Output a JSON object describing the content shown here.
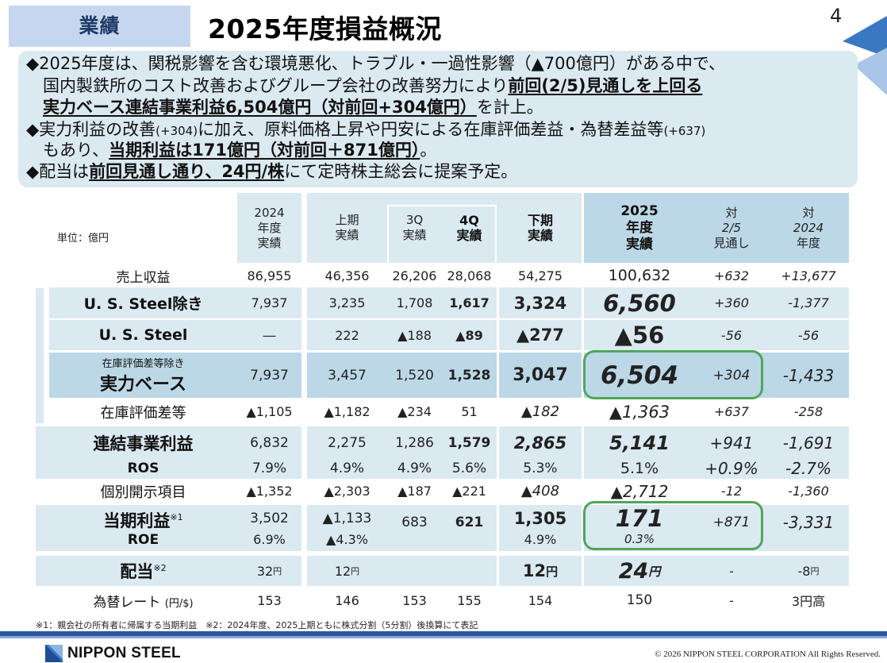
{
  "section_tag": "業績",
  "title": "2025年度損益概況",
  "page_number": "4",
  "summary": {
    "line1": "◆2025年度は、関税影響を含む環境悪化、トラブル・一過性影響（▲700億円）がある中で、",
    "line2_plain": "国内製鉄所のコスト改善およびグループ会社の改善努力により",
    "line2_bold": "前回(2/5)見通しを上回る",
    "line3_bold": "実力ベース連結事業利益6,504億円（対前回+304億円）",
    "line3_plain": "を計上。",
    "line4_a": "◆実力利益の改善",
    "line4_small1": "(+304)",
    "line4_b": "に加え、原料価格上昇や円安による在庫評価差益・為替差益等",
    "line4_small2": "(+637)",
    "line5_plain": "もあり、",
    "line5_bold": "当期利益は171億円（対前回＋871億円）",
    "line5_end": "。",
    "line6_a": "◆配当は",
    "line6_bold": "前回見通し通り、24円/株",
    "line6_b": "にて定時株主総会に提案予定。"
  },
  "table": {
    "unit": "単位：億円",
    "headers": {
      "fy2024": [
        "2024",
        "年度",
        "実績"
      ],
      "h1": [
        "上期",
        "実績"
      ],
      "q3": [
        "3Q",
        "実績"
      ],
      "q4": [
        "4Q",
        "実績"
      ],
      "h2": [
        "下期",
        "実績"
      ],
      "fy2025": [
        "2025",
        "年度",
        "実績"
      ],
      "vs_prev": [
        "対",
        "2/5",
        "見通し"
      ],
      "vs_2024": [
        "対",
        "2024",
        "年度"
      ]
    },
    "rows": {
      "revenue": {
        "label": "売上収益",
        "values": [
          "86,955",
          "46,356",
          "26,206",
          "28,068",
          "54,275",
          "100,632",
          "+632",
          "+13,677"
        ]
      },
      "us_excl": {
        "label": "U. S. Steel除き",
        "values": [
          "7,937",
          "3,235",
          "1,708",
          "1,617",
          "3,324",
          "6,560",
          "+360",
          "-1,377"
        ]
      },
      "us": {
        "label": "U. S. Steel",
        "values": [
          "―",
          "222",
          "▲188",
          "▲89",
          "▲277",
          "▲56",
          "-56",
          "-56"
        ]
      },
      "core": {
        "label_small": "在庫評価差等除き",
        "label": "実力ベース",
        "values": [
          "7,937",
          "3,457",
          "1,520",
          "1,528",
          "3,047",
          "6,504",
          "+304",
          "-1,433"
        ]
      },
      "inventory": {
        "label": "在庫評価差等",
        "values": [
          "▲1,105",
          "▲1,182",
          "▲234",
          "51",
          "▲182",
          "▲1,363",
          "+637",
          "-258"
        ]
      },
      "consolidated": {
        "label": "連結事業利益",
        "values": [
          "6,832",
          "2,275",
          "1,286",
          "1,579",
          "2,865",
          "5,141",
          "+941",
          "-1,691"
        ]
      },
      "ros": {
        "label": "ROS",
        "values": [
          "7.9%",
          "4.9%",
          "4.9%",
          "5.6%",
          "5.3%",
          "5.1%",
          "+0.9%",
          "-2.7%"
        ]
      },
      "special": {
        "label": "個別開示項目",
        "values": [
          "▲1,352",
          "▲2,303",
          "▲187",
          "▲221",
          "▲408",
          "▲2,712",
          "-12",
          "-1,360"
        ]
      },
      "net": {
        "label": "当期利益",
        "label_sup": "※1",
        "label_sub": "ROE",
        "values": [
          "3,502",
          "▲1,133",
          "683",
          "621",
          "1,305",
          "171",
          "+871",
          "-3,331"
        ],
        "roe": [
          "6.9%",
          "▲4.3%",
          "",
          "",
          "4.9%",
          "0.3%",
          "",
          ""
        ]
      },
      "dividend": {
        "label": "配当",
        "label_sup": "※2",
        "values": [
          "32",
          "12",
          "",
          "",
          "12",
          "24",
          "-",
          "-8"
        ],
        "unit": "円"
      },
      "fx": {
        "label": "為替レート",
        "label_unit": "(円/$)",
        "values": [
          "153",
          "146",
          "153",
          "155",
          "154",
          "150",
          "-",
          "3円高"
        ]
      }
    }
  },
  "footnote": "※1：親会社の所有者に帰属する当期利益　※2：2024年度、2025上期ともに株式分割（5分割）後換算にて表記",
  "logo": "NIPPON STEEL",
  "copyright": "© 2026 NIPPON STEEL CORPORATION All Rights Reserved.",
  "colors": {
    "band": "#dbe9f1",
    "band_core": "#bcd8e6",
    "tag": "#c6d6ee",
    "highlight_box": "#4fa65a",
    "footer_bar": "#2a56a0"
  }
}
